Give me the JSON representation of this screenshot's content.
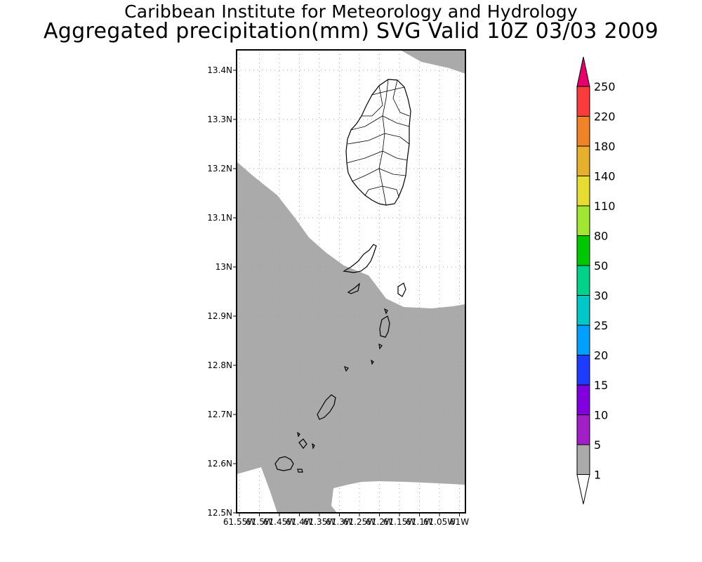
{
  "header": {
    "title": "Caribbean Institute for Meteorology and Hydrology",
    "subtitle": "Aggregated precipitation(mm) SVG Valid 10Z 03/03 2009"
  },
  "map": {
    "y_labels": [
      "13.4N",
      "13.3N",
      "13.2N",
      "13.1N",
      "13N",
      "12.9N",
      "12.8N",
      "12.7N",
      "12.6N",
      "12.5N"
    ],
    "x_labels": [
      "61.55W",
      "61.5W",
      "61.45W",
      "61.4W",
      "61.35W",
      "61.3W",
      "61.25W",
      "61.2W",
      "61.15W",
      "61.1W",
      "61.05W",
      "61W"
    ]
  },
  "colorbar": {
    "levels": [
      "1",
      "5",
      "10",
      "15",
      "20",
      "25",
      "30",
      "50",
      "80",
      "110",
      "140",
      "180",
      "220",
      "250"
    ],
    "colors": [
      "#ffffff",
      "#aaaaaa",
      "#a21fc8",
      "#8000e0",
      "#1e3cff",
      "#00a0ff",
      "#00c8c8",
      "#00d28c",
      "#00c800",
      "#a0e632",
      "#e6dc32",
      "#e6af2d",
      "#f08228",
      "#fa3c3c",
      "#e6006e"
    ]
  },
  "colors": {
    "shading": "#aaaaaa",
    "grid": "#a0a0a0",
    "frame": "#000000"
  }
}
